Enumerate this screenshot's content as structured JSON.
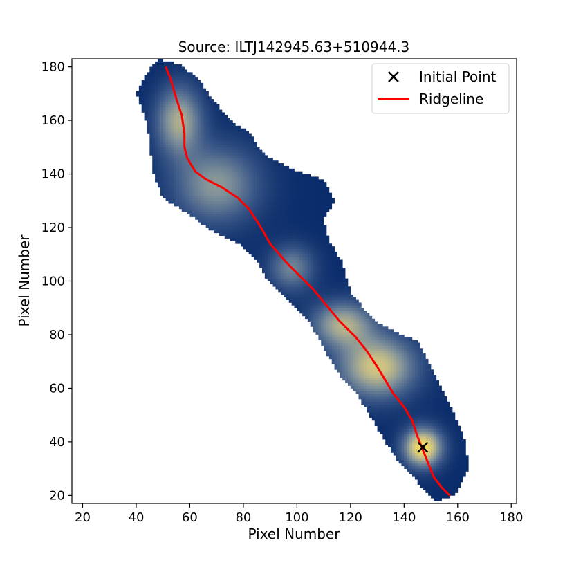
{
  "chart_data": {
    "type": "heatmap",
    "title": "Source: ILTJ142945.63+510944.3",
    "xlabel": "Pixel Number",
    "ylabel": "Pixel Number",
    "xlim": [
      16,
      182
    ],
    "ylim": [
      17,
      183
    ],
    "xticks": [
      20,
      40,
      60,
      80,
      100,
      120,
      140,
      160,
      180
    ],
    "yticks": [
      20,
      40,
      60,
      80,
      100,
      120,
      140,
      160,
      180
    ],
    "grid": false,
    "legend_position": "top-right",
    "colormap": [
      "#0b2c6b",
      "#3d5a89",
      "#7d8f9a",
      "#c7be86",
      "#f6e05a"
    ],
    "series": [
      {
        "name": "Initial Point",
        "type": "scatter",
        "marker": "x",
        "color": "#000000",
        "points": [
          [
            147,
            38
          ]
        ]
      },
      {
        "name": "Ridgeline",
        "type": "line",
        "color": "#ff0000",
        "points": [
          [
            51,
            180
          ],
          [
            53,
            175
          ],
          [
            55,
            168
          ],
          [
            57,
            162
          ],
          [
            58,
            155
          ],
          [
            58,
            150
          ],
          [
            59,
            146
          ],
          [
            62,
            141
          ],
          [
            66,
            138
          ],
          [
            72,
            135
          ],
          [
            78,
            131
          ],
          [
            82,
            127
          ],
          [
            86,
            121
          ],
          [
            90,
            114
          ],
          [
            96,
            107
          ],
          [
            100,
            103
          ],
          [
            106,
            97
          ],
          [
            111,
            91
          ],
          [
            116,
            85
          ],
          [
            122,
            79
          ],
          [
            126,
            74
          ],
          [
            130,
            68
          ],
          [
            133,
            63
          ],
          [
            136,
            58
          ],
          [
            140,
            53
          ],
          [
            143,
            48
          ],
          [
            145,
            42
          ],
          [
            147,
            37
          ],
          [
            149,
            32
          ],
          [
            151,
            27
          ],
          [
            154,
            23
          ],
          [
            157,
            20
          ]
        ]
      }
    ],
    "emission": {
      "outline": [
        [
          48,
          183
        ],
        [
          56,
          181
        ],
        [
          63,
          176
        ],
        [
          67,
          170
        ],
        [
          71,
          165
        ],
        [
          76,
          159
        ],
        [
          82,
          156
        ],
        [
          87,
          148
        ],
        [
          92,
          145
        ],
        [
          98,
          142
        ],
        [
          104,
          140
        ],
        [
          110,
          138
        ],
        [
          114,
          130
        ],
        [
          110,
          123
        ],
        [
          112,
          115
        ],
        [
          117,
          107
        ],
        [
          120,
          96
        ],
        [
          129,
          85
        ],
        [
          139,
          80
        ],
        [
          145,
          78
        ],
        [
          149,
          70
        ],
        [
          153,
          62
        ],
        [
          158,
          52
        ],
        [
          163,
          40
        ],
        [
          164,
          30
        ],
        [
          159,
          20
        ],
        [
          152,
          18
        ],
        [
          145,
          25
        ],
        [
          137,
          34
        ],
        [
          130,
          45
        ],
        [
          123,
          57
        ],
        [
          116,
          65
        ],
        [
          110,
          75
        ],
        [
          104,
          86
        ],
        [
          96,
          94
        ],
        [
          89,
          100
        ],
        [
          85,
          108
        ],
        [
          78,
          114
        ],
        [
          68,
          119
        ],
        [
          58,
          126
        ],
        [
          50,
          131
        ],
        [
          46,
          141
        ],
        [
          45,
          153
        ],
        [
          43,
          162
        ],
        [
          40,
          170
        ],
        [
          43,
          176
        ]
      ],
      "peaks": [
        {
          "x": 147,
          "y": 38,
          "level": 1.0,
          "sx": 5,
          "sy": 5
        },
        {
          "x": 130,
          "y": 68,
          "level": 0.8,
          "sx": 10,
          "sy": 8
        },
        {
          "x": 117,
          "y": 84,
          "level": 0.65,
          "sx": 8,
          "sy": 6
        },
        {
          "x": 98,
          "y": 105,
          "level": 0.45,
          "sx": 6,
          "sy": 6
        },
        {
          "x": 70,
          "y": 136,
          "level": 0.55,
          "sx": 11,
          "sy": 10
        },
        {
          "x": 56,
          "y": 160,
          "level": 0.65,
          "sx": 6,
          "sy": 9
        }
      ]
    }
  }
}
